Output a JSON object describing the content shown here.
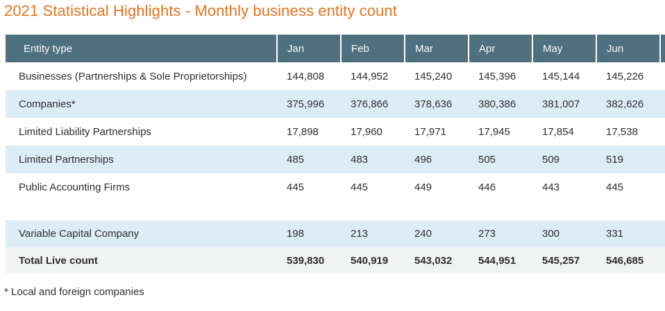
{
  "title": "2021 Statistical Highlights - Monthly business entity count",
  "footnote": "* Local and foreign companies",
  "colors": {
    "title_orange": "#e5731f",
    "header_bg": "#4e707f",
    "header_text": "#fafbfc",
    "alt_row_bg": "#ddedf6",
    "total_row_bg": "#f2f3f3",
    "body_text": "#2d2d2d"
  },
  "chart_data": {
    "type": "table",
    "title": "2021 Statistical Highlights - Monthly business entity count",
    "columns": [
      "Entity type",
      "Jan",
      "Feb",
      "Mar",
      "Apr",
      "May",
      "Jun"
    ],
    "rows": [
      {
        "label": "Businesses (Partnerships & Sole Proprietorships)",
        "values": [
          "144,808",
          "144,952",
          "145,240",
          "145,396",
          "145,144",
          "145,226"
        ]
      },
      {
        "label": "Companies*",
        "values": [
          "375,996",
          "376,866",
          "378,636",
          "380,386",
          "381,007",
          "382,626"
        ]
      },
      {
        "label": "Limited Liability Partnerships",
        "values": [
          "17,898",
          "17,960",
          "17,971",
          "17,945",
          "17,854",
          "17,538"
        ]
      },
      {
        "label": "Limited Partnerships",
        "values": [
          "485",
          "483",
          "496",
          "505",
          "509",
          "519"
        ]
      },
      {
        "label": "Public Accounting Firms",
        "values": [
          "445",
          "445",
          "449",
          "446",
          "443",
          "445"
        ]
      },
      {
        "label": "",
        "values": [
          "",
          "",
          "",
          "",
          "",
          ""
        ]
      },
      {
        "label": "Variable Capital Company",
        "values": [
          "198",
          "213",
          "240",
          "273",
          "300",
          "331"
        ]
      },
      {
        "label": "Total Live count",
        "values": [
          "539,830",
          "540,919",
          "543,032",
          "544,951",
          "545,257",
          "546,685"
        ]
      }
    ]
  }
}
